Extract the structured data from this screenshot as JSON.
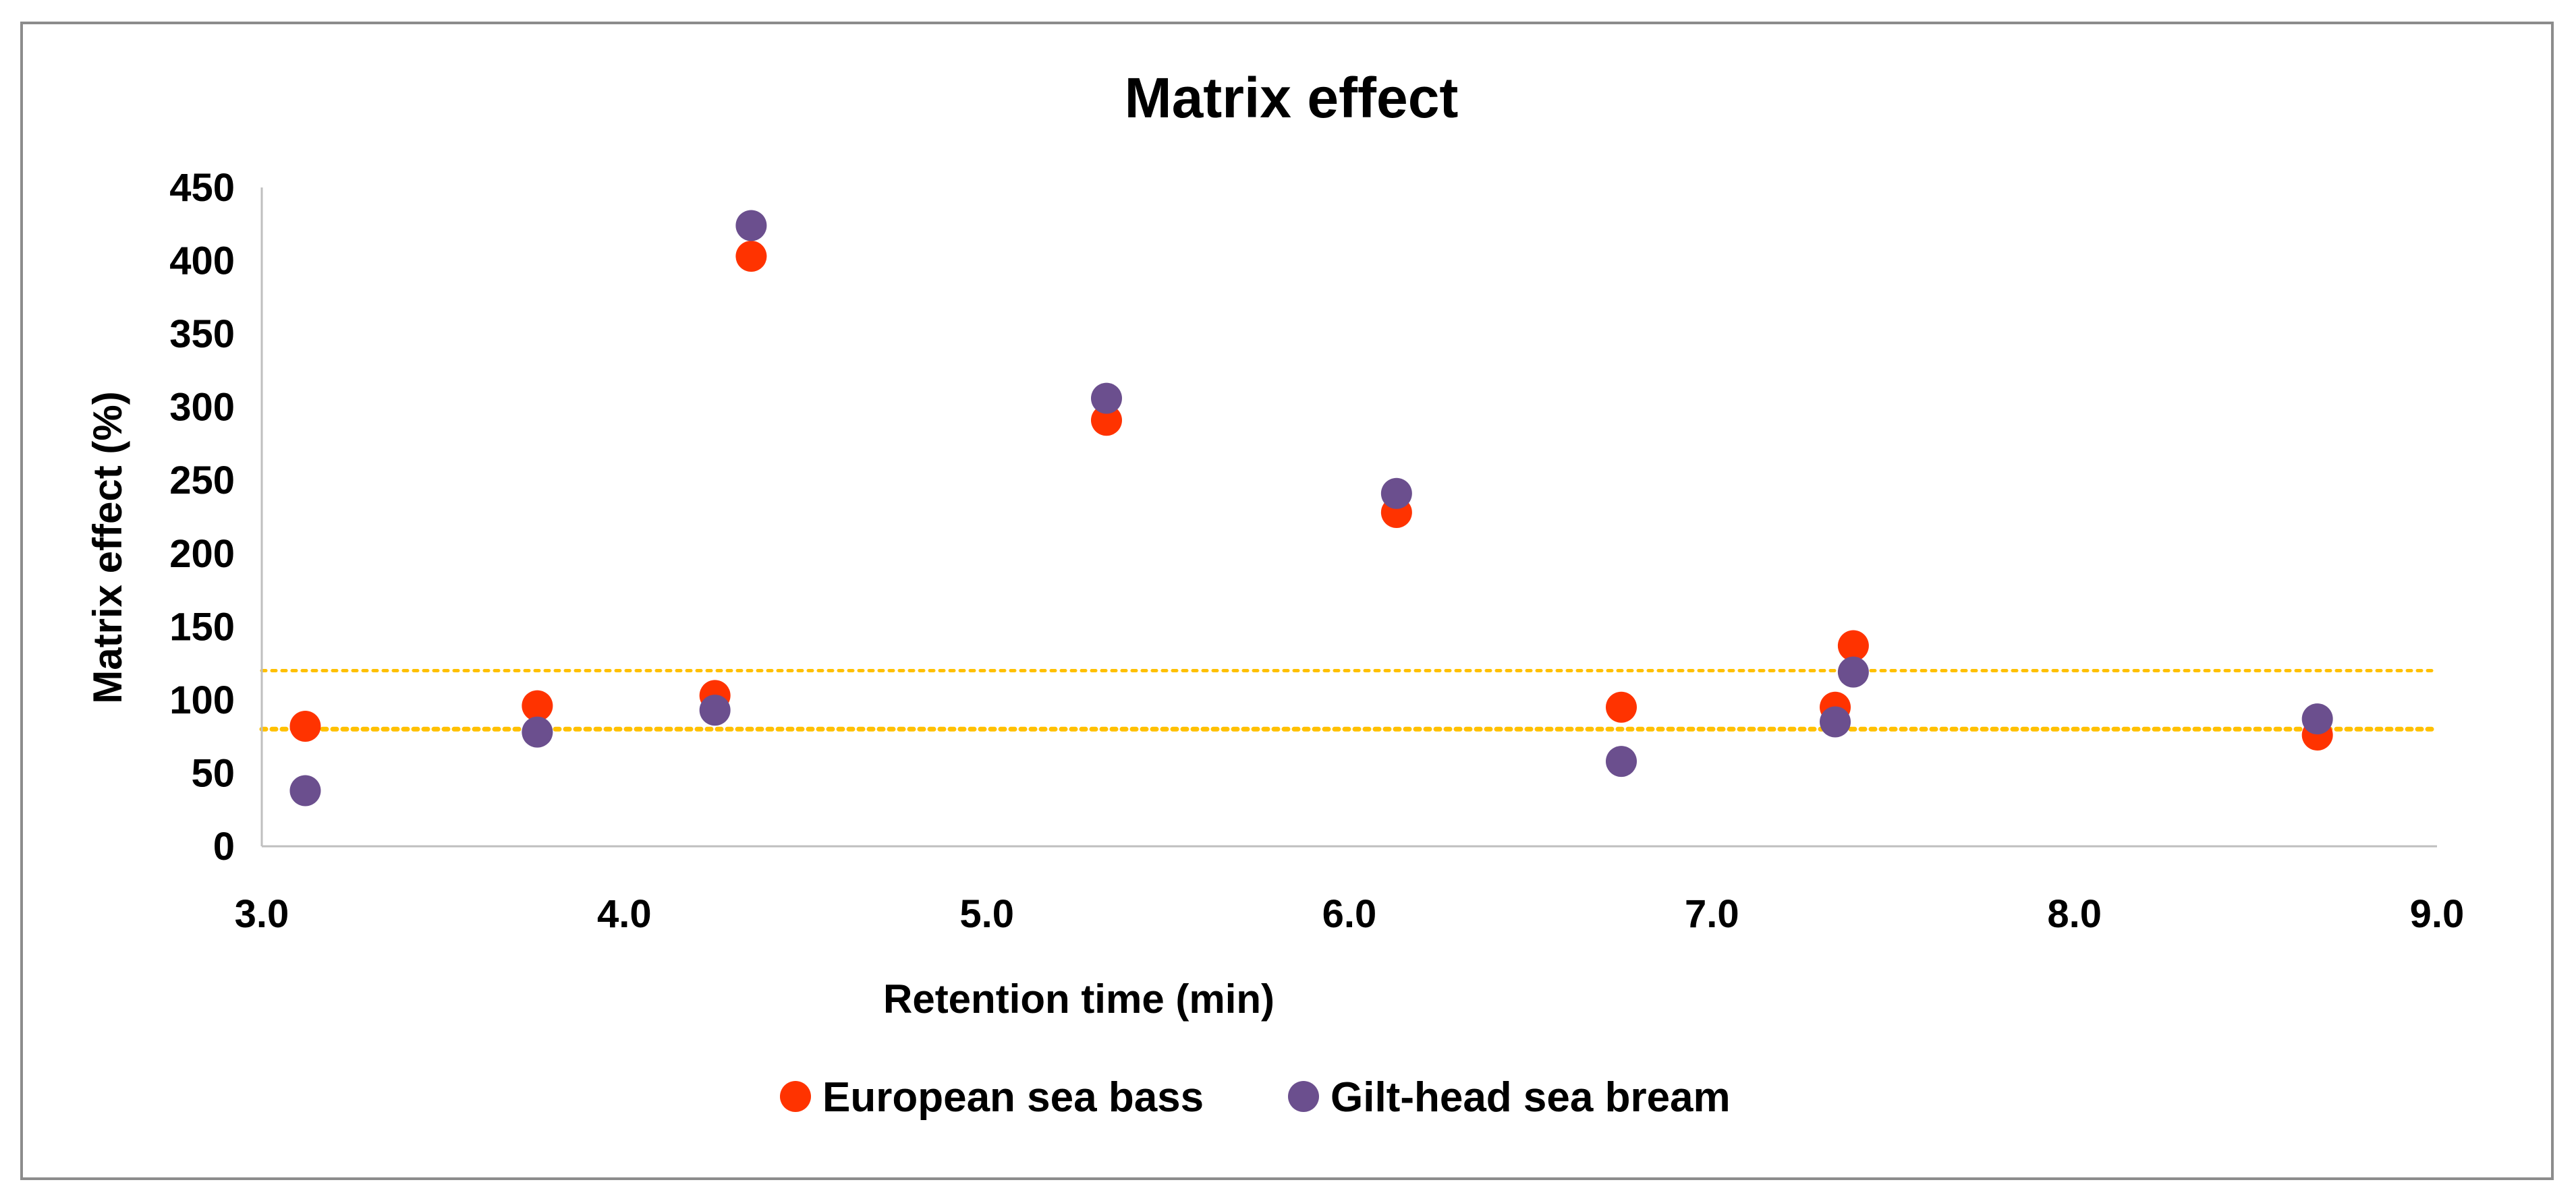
{
  "chart_data": {
    "type": "scatter",
    "title": "Matrix effect",
    "xlabel": "Retention time (min)",
    "ylabel": "Matrix effect  (%)",
    "xlim": [
      3.0,
      9.0
    ],
    "ylim": [
      0,
      450
    ],
    "x_ticks": [
      "3.0",
      "4.0",
      "5.0",
      "6.0",
      "7.0",
      "8.0",
      "9.0"
    ],
    "y_ticks": [
      "0",
      "50",
      "100",
      "150",
      "200",
      "250",
      "300",
      "350",
      "400",
      "450"
    ],
    "reference_lines": [
      {
        "y": 80,
        "color": "#ffc000",
        "style": "dotted"
      },
      {
        "y": 120,
        "color": "#ffc000",
        "style": "dotted"
      }
    ],
    "legend_position": "bottom-center",
    "series": [
      {
        "name": "European sea bass",
        "color": "#ff3300",
        "points": [
          {
            "x": 3.12,
            "y": 82
          },
          {
            "x": 3.76,
            "y": 96
          },
          {
            "x": 4.25,
            "y": 103
          },
          {
            "x": 4.35,
            "y": 403
          },
          {
            "x": 5.33,
            "y": 291
          },
          {
            "x": 6.13,
            "y": 228
          },
          {
            "x": 6.75,
            "y": 95
          },
          {
            "x": 7.34,
            "y": 95
          },
          {
            "x": 7.39,
            "y": 137
          },
          {
            "x": 8.67,
            "y": 76
          }
        ]
      },
      {
        "name": "Gilt-head sea bream",
        "color": "#6b4f8e",
        "points": [
          {
            "x": 3.12,
            "y": 38
          },
          {
            "x": 3.76,
            "y": 78
          },
          {
            "x": 4.25,
            "y": 93
          },
          {
            "x": 4.35,
            "y": 424
          },
          {
            "x": 5.33,
            "y": 306
          },
          {
            "x": 6.13,
            "y": 241
          },
          {
            "x": 6.75,
            "y": 58
          },
          {
            "x": 7.34,
            "y": 85
          },
          {
            "x": 7.39,
            "y": 119
          },
          {
            "x": 8.67,
            "y": 87
          }
        ]
      }
    ]
  }
}
